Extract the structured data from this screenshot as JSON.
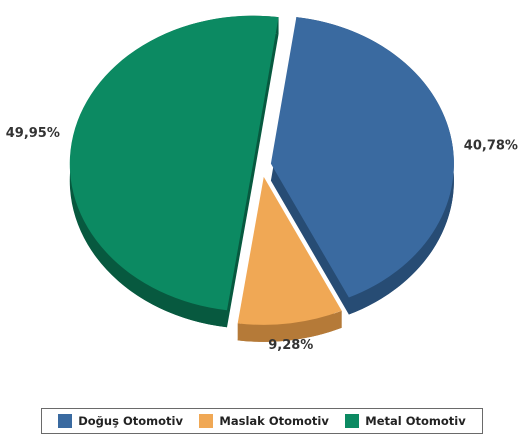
{
  "chart_data": {
    "type": "pie",
    "style": "3d-exploded",
    "title": "",
    "legend_position": "bottom",
    "slices": [
      {
        "name": "Doğuş Otomotiv",
        "value": 40.78,
        "label": "40,78%",
        "color": "#3a6aa0",
        "side_color": "#274c74"
      },
      {
        "name": "Maslak Otomotiv",
        "value": 9.28,
        "label": "9,28%",
        "color": "#f0a855",
        "side_color": "#b57a38"
      },
      {
        "name": "Metal Otomotiv",
        "value": 49.95,
        "label": "49,95%",
        "color": "#0c8a62",
        "side_color": "#07593f"
      }
    ]
  },
  "legend": {
    "items": [
      {
        "label": "Doğuş Otomotiv",
        "color": "#3a6aa0"
      },
      {
        "label": "Maslak Otomotiv",
        "color": "#f0a855"
      },
      {
        "label": "Metal Otomotiv",
        "color": "#0c8a62"
      }
    ]
  }
}
